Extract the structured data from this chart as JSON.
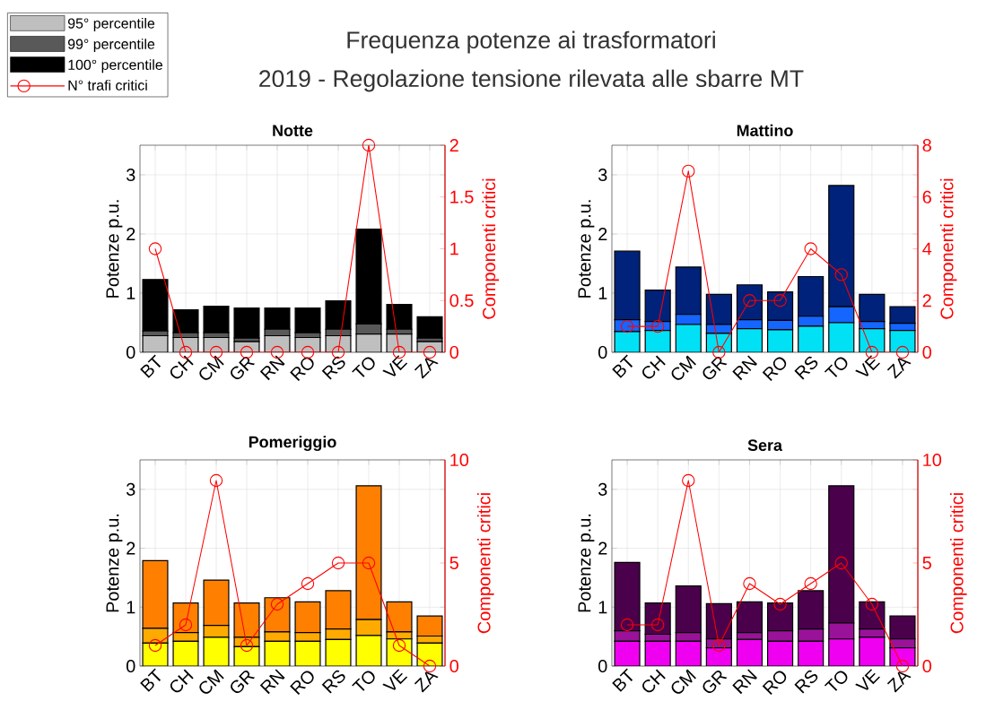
{
  "chart_data": [
    {
      "type": "bar",
      "title": "Notte",
      "stacked": true,
      "grid": true,
      "legend": "top left",
      "marker": "circle",
      "categories": [
        "BT",
        "CH",
        "CM",
        "GR",
        "RN",
        "RO",
        "RS",
        "TO",
        "VE",
        "ZA"
      ],
      "ylabel": "Potenze p.u.",
      "y2label": "Componenti critici",
      "ylim": [
        0,
        3.5
      ],
      "yticks": [
        0,
        1,
        2,
        3
      ],
      "y2lim": [
        0,
        2
      ],
      "y2ticks": [
        0,
        0.5,
        1,
        1.5,
        2
      ],
      "annotations": [
        "Frequenza potenze ai trasformatori",
        "2019 - Regolazione tensione rilevata alle sbarre MT"
      ],
      "series": [
        {
          "name": "95° percentile",
          "color": "#bfbfbf",
          "values": [
            0.28,
            0.25,
            0.25,
            0.18,
            0.28,
            0.25,
            0.28,
            0.31,
            0.31,
            0.18
          ]
        },
        {
          "name": "99° percentile",
          "color": "#595959",
          "values": [
            0.08,
            0.08,
            0.08,
            0.06,
            0.11,
            0.08,
            0.11,
            0.17,
            0.08,
            0.06
          ]
        },
        {
          "name": "100° percentile",
          "color": "#000000",
          "values": [
            0.87,
            0.39,
            0.45,
            0.51,
            0.36,
            0.42,
            0.48,
            1.6,
            0.42,
            0.36
          ]
        },
        {
          "name": "N° trafi critici",
          "type": "line",
          "axis": "y2",
          "color": "#ff0000",
          "values": [
            1,
            0,
            0,
            0,
            0,
            0,
            0,
            2,
            0,
            0
          ]
        }
      ]
    },
    {
      "type": "bar",
      "title": "Mattino",
      "stacked": true,
      "grid": true,
      "marker": "circle",
      "categories": [
        "BT",
        "CH",
        "CM",
        "GR",
        "RN",
        "RO",
        "RS",
        "TO",
        "VE",
        "ZA"
      ],
      "ylabel": "Potenze p.u.",
      "y2label": "Componenti critici",
      "ylim": [
        0,
        3.5
      ],
      "yticks": [
        0,
        1,
        2,
        3
      ],
      "y2lim": [
        0,
        8
      ],
      "y2ticks": [
        0,
        2,
        4,
        6,
        8
      ],
      "series": [
        {
          "color": "#00e1f5",
          "values": [
            0.35,
            0.37,
            0.47,
            0.32,
            0.4,
            0.38,
            0.44,
            0.5,
            0.4,
            0.37
          ]
        },
        {
          "color": "#1565ff",
          "values": [
            0.2,
            0.15,
            0.17,
            0.15,
            0.15,
            0.16,
            0.17,
            0.27,
            0.12,
            0.12
          ]
        },
        {
          "color": "#00227a",
          "values": [
            1.16,
            0.53,
            0.8,
            0.51,
            0.59,
            0.48,
            0.67,
            2.05,
            0.46,
            0.28
          ]
        },
        {
          "type": "line",
          "axis": "y2",
          "color": "#ff0000",
          "values": [
            1,
            1,
            7,
            0,
            2,
            2,
            4,
            3,
            0,
            0
          ]
        }
      ]
    },
    {
      "type": "bar",
      "title": "Pomeriggio",
      "stacked": true,
      "grid": true,
      "marker": "circle",
      "categories": [
        "BT",
        "CH",
        "CM",
        "GR",
        "RN",
        "RO",
        "RS",
        "TO",
        "VE",
        "ZA"
      ],
      "ylabel": "Potenze p.u.",
      "y2label": "Componenti critici",
      "ylim": [
        0,
        3.5
      ],
      "yticks": [
        0,
        1,
        2,
        3
      ],
      "y2lim": [
        0,
        10
      ],
      "y2ticks": [
        0,
        5,
        10
      ],
      "series": [
        {
          "color": "#ffff00",
          "values": [
            0.39,
            0.42,
            0.49,
            0.33,
            0.42,
            0.42,
            0.45,
            0.52,
            0.46,
            0.39
          ]
        },
        {
          "color": "#ffaa00",
          "values": [
            0.25,
            0.15,
            0.2,
            0.16,
            0.16,
            0.15,
            0.18,
            0.27,
            0.12,
            0.12
          ]
        },
        {
          "color": "#ff8000",
          "values": [
            1.15,
            0.5,
            0.77,
            0.58,
            0.58,
            0.52,
            0.65,
            2.27,
            0.51,
            0.34
          ]
        },
        {
          "type": "line",
          "axis": "y2",
          "color": "#ff0000",
          "values": [
            1,
            2,
            9,
            1,
            3,
            4,
            5,
            5,
            1,
            0
          ]
        }
      ]
    },
    {
      "type": "bar",
      "title": "Sera",
      "stacked": true,
      "grid": true,
      "marker": "circle",
      "categories": [
        "BT",
        "CH",
        "CM",
        "GR",
        "RN",
        "RO",
        "RS",
        "TO",
        "VE",
        "ZA"
      ],
      "ylabel": "Potenze p.u.",
      "y2label": "Componenti critici",
      "ylim": [
        0,
        3.5
      ],
      "yticks": [
        0,
        1,
        2,
        3
      ],
      "y2lim": [
        0,
        10
      ],
      "y2ticks": [
        0,
        5,
        10
      ],
      "series": [
        {
          "color": "#f000f0",
          "values": [
            0.42,
            0.42,
            0.42,
            0.31,
            0.45,
            0.42,
            0.42,
            0.46,
            0.49,
            0.31
          ]
        },
        {
          "color": "#9a129a",
          "values": [
            0.18,
            0.12,
            0.15,
            0.15,
            0.12,
            0.18,
            0.21,
            0.27,
            0.14,
            0.15
          ]
        },
        {
          "color": "#4b004b",
          "values": [
            1.16,
            0.53,
            0.79,
            0.6,
            0.52,
            0.47,
            0.65,
            2.33,
            0.46,
            0.39
          ]
        },
        {
          "type": "line",
          "axis": "y2",
          "color": "#ff0000",
          "values": [
            2,
            2,
            9,
            1,
            4,
            3,
            4,
            5,
            3,
            0
          ]
        }
      ]
    }
  ]
}
